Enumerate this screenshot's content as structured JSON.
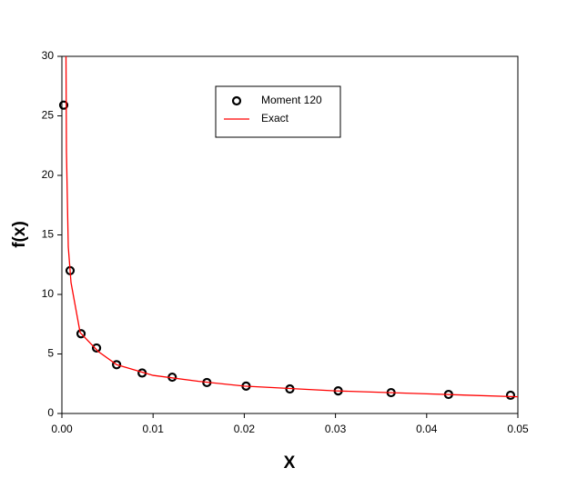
{
  "chart_data": {
    "type": "scatter",
    "x_label": "X",
    "y_label": "f(x)",
    "xlim": [
      0,
      0.05
    ],
    "ylim": [
      0,
      30
    ],
    "xticks": [
      {
        "value": 0,
        "label": "0.00"
      },
      0.01,
      0.02,
      0.03,
      0.04,
      0.05
    ],
    "yticks": [
      0,
      5,
      10,
      15,
      20,
      25,
      30
    ],
    "series": [
      {
        "name": "Moment 120",
        "color": "#000000",
        "marker": "circle",
        "x": [
          0.0002,
          0.0009,
          0.0021,
          0.0038,
          0.006,
          0.0088,
          0.0121,
          0.0159,
          0.0202,
          0.025,
          0.0303,
          0.0361,
          0.0424,
          0.0492
        ],
        "values": [
          25.9,
          12.0,
          6.7,
          5.5,
          4.1,
          3.4,
          3.05,
          2.6,
          2.3,
          2.06,
          1.9,
          1.75,
          1.6,
          1.53
        ]
      },
      {
        "name": "Exact",
        "color": "#ff0000",
        "marker": "line",
        "x": [
          0.00045,
          0.0005,
          0.0007,
          0.001,
          0.002,
          0.004,
          0.006,
          0.01,
          0.015,
          0.02,
          0.03,
          0.04,
          0.05
        ],
        "values": [
          30,
          22,
          14,
          11,
          6.8,
          5.2,
          4.1,
          3.2,
          2.7,
          2.3,
          1.9,
          1.65,
          1.4
        ]
      }
    ]
  }
}
